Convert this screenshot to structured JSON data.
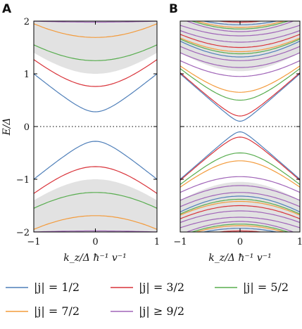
{
  "chart_data": [
    {
      "panel": "A",
      "type": "line",
      "xlabel": "k_z/Δ ħ⁻¹ v⁻¹",
      "ylabel": "E/Δ",
      "xlim": [
        -1,
        1
      ],
      "ylim": [
        -2,
        2
      ],
      "xticks": [
        "−1",
        "0",
        "1"
      ],
      "yticks": [
        "−2",
        "−1",
        "0",
        "1",
        "2"
      ],
      "grid": false,
      "continuum_band": {
        "edge_at_k0": 1.0,
        "edge_at_k1": 1.4,
        "color": "#e2e2e2"
      },
      "series": [
        {
          "name": "|j| = 1/2",
          "color": "#4f7fb9",
          "levels": [
            [
              0.28,
              1.0
            ]
          ]
        },
        {
          "name": "|j| = 3/2",
          "color": "#d9333a",
          "levels": [
            [
              0.76,
              1.27
            ]
          ]
        },
        {
          "name": "|j| = 5/2",
          "color": "#58ad4f",
          "levels": [
            [
              1.25,
              1.55
            ]
          ]
        },
        {
          "name": "|j| = 7/2",
          "color": "#f39b3c",
          "levels": [
            [
              1.69,
              1.95
            ]
          ]
        },
        {
          "name": "|j| ≥ 9/2",
          "color": "#a065b8",
          "levels": [
            [
              1.98,
              2.0
            ]
          ]
        }
      ]
    },
    {
      "panel": "B",
      "type": "line",
      "xlabel": "k_z/Δ ħ⁻¹ v⁻¹",
      "ylabel": "",
      "xlim": [
        -1,
        1
      ],
      "ylim": [
        -2,
        2
      ],
      "xticks": [
        "−1",
        "0",
        "1"
      ],
      "yticks": [],
      "grid": false,
      "continuum_band": {
        "edge_at_k0": 1.05,
        "edge_at_k1": 1.4,
        "color": "#e2e2e2"
      },
      "series": [
        {
          "name": "|j| = 1/2",
          "color": "#4f7fb9",
          "levels": [
            [
              0.1,
              1.0
            ],
            [
              1.32,
              1.62
            ],
            [
              1.93,
              2.12
            ]
          ]
        },
        {
          "name": "|j| = 3/2",
          "color": "#d9333a",
          "levels": [
            [
              0.2,
              1.02
            ],
            [
              1.5,
              1.75
            ],
            [
              1.98,
              2.15
            ]
          ]
        },
        {
          "name": "|j| = 5/2",
          "color": "#58ad4f",
          "levels": [
            [
              0.5,
              1.1
            ],
            [
              1.38,
              1.66
            ],
            [
              1.85,
              2.08
            ]
          ]
        },
        {
          "name": "|j| = 7/2",
          "color": "#f39b3c",
          "levels": [
            [
              0.65,
              1.15
            ],
            [
              1.42,
              1.68
            ],
            [
              1.88,
              2.1
            ]
          ]
        },
        {
          "name": "|j| ≥ 9/2",
          "color": "#a065b8",
          "levels": [
            [
              0.95,
              1.25
            ],
            [
              1.12,
              1.4
            ],
            [
              1.25,
              1.52
            ],
            [
              1.6,
              1.82
            ],
            [
              1.72,
              1.92
            ],
            [
              1.8,
              2.05
            ]
          ]
        }
      ]
    }
  ],
  "panels": {
    "a_label": "A",
    "b_label": "B"
  },
  "legend": {
    "items": [
      {
        "label": "|j| = 1/2",
        "color": "#4f7fb9"
      },
      {
        "label": "|j| = 3/2",
        "color": "#d9333a"
      },
      {
        "label": "|j| = 5/2",
        "color": "#58ad4f"
      },
      {
        "label": "|j| = 7/2",
        "color": "#f39b3c"
      },
      {
        "label": "|j| ≥ 9/2",
        "color": "#a065b8"
      }
    ],
    "placement": "bottom"
  }
}
